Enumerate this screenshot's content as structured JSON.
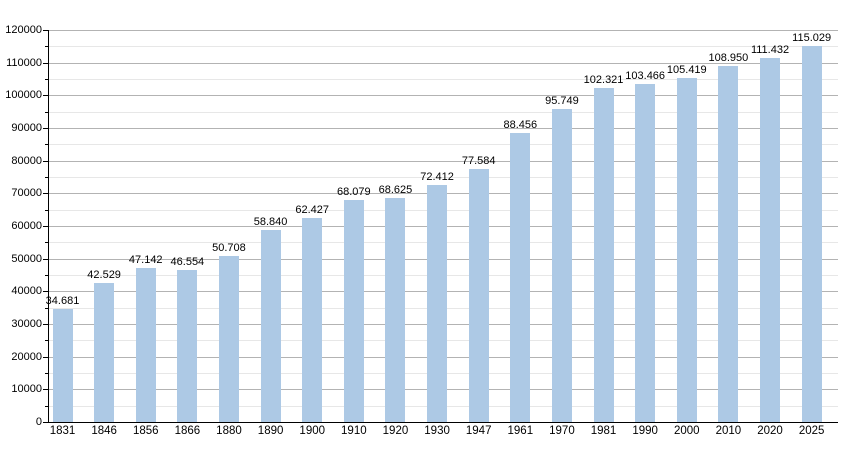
{
  "chart_data": {
    "type": "bar",
    "title": "",
    "xlabel": "",
    "ylabel": "",
    "categories": [
      "1831",
      "1846",
      "1856",
      "1866",
      "1880",
      "1890",
      "1900",
      "1910",
      "1920",
      "1930",
      "1947",
      "1961",
      "1970",
      "1981",
      "1990",
      "2000",
      "2010",
      "2020",
      "2025"
    ],
    "values": [
      34681,
      42529,
      47142,
      46554,
      50708,
      58840,
      62427,
      68079,
      68625,
      72412,
      77584,
      88456,
      95749,
      102321,
      103466,
      105419,
      108950,
      111432,
      115029
    ],
    "bar_labels": [
      "34.681",
      "42.529",
      "47.142",
      "46.554",
      "50.708",
      "58.840",
      "62.427",
      "68.079",
      "68.625",
      "72.412",
      "77.584",
      "88.456",
      "95.749",
      "102.321",
      "103.466",
      "105.419",
      "108.950",
      "111.432",
      "115.029"
    ],
    "ylim": [
      0,
      120000
    ],
    "y_major_step": 10000,
    "y_minor_step": 5000,
    "y_tick_labels": [
      "0",
      "10000",
      "20000",
      "30000",
      "40000",
      "50000",
      "60000",
      "70000",
      "80000",
      "90000",
      "100000",
      "110000",
      "120000"
    ],
    "grid": "on",
    "legend": "none",
    "colors": {
      "bar_fill": "#adc9e5",
      "grid_major": "#b3b3b3",
      "grid_minor": "#e7e7e7",
      "axis": "#000000",
      "text": "#000000",
      "background": "#ffffff"
    }
  }
}
